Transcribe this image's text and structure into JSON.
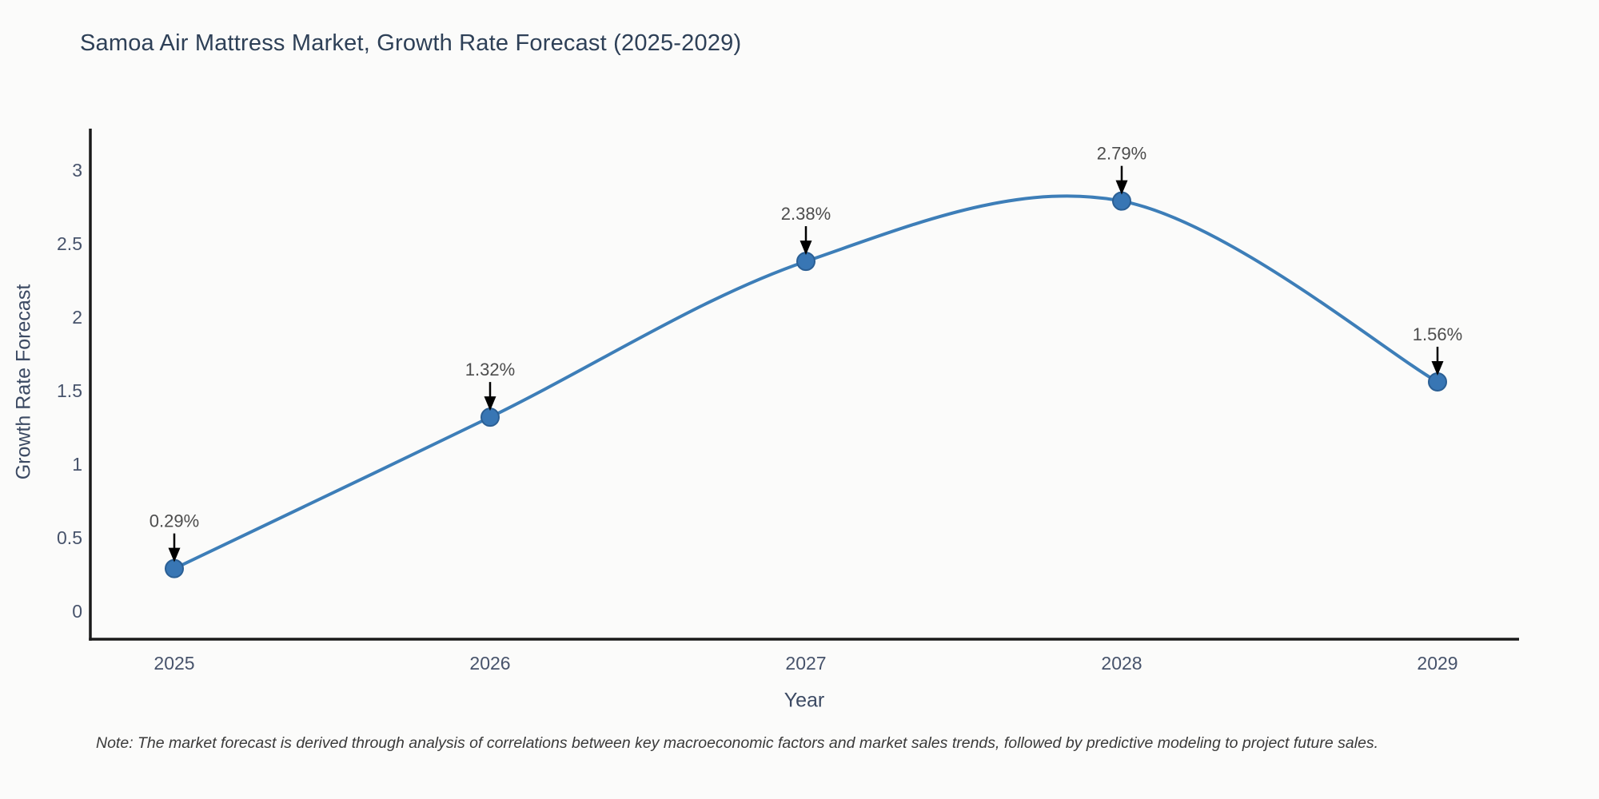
{
  "page": {
    "title": "Samoa Air Mattress Market, Growth Rate Forecast (2025-2029)",
    "note": "Note: The market forecast is derived through analysis of correlations between key macroeconomic factors and market sales trends, followed by predictive modeling to project future sales."
  },
  "chart_data": {
    "type": "line",
    "title": "Samoa Air Mattress Market, Growth Rate Forecast (2025-2029)",
    "xlabel": "Year",
    "ylabel": "Growth Rate Forecast",
    "categories": [
      "2025",
      "2026",
      "2027",
      "2028",
      "2029"
    ],
    "values": [
      0.29,
      1.32,
      2.38,
      2.79,
      1.56
    ],
    "point_labels": [
      "0.29%",
      "1.32%",
      "2.38%",
      "2.79%",
      "1.56%"
    ],
    "yticks": [
      0,
      0.5,
      1,
      1.5,
      2,
      2.5,
      3
    ],
    "ytick_labels": [
      "0",
      "0.5",
      "1",
      "1.5",
      "2",
      "2.5",
      "3"
    ],
    "ylim": [
      -0.2,
      3.3
    ],
    "grid": false,
    "legend": "none",
    "smooth_spline": true,
    "annotation_style": "black-arrow-pointing-down-to-point",
    "colors": {
      "line": "#3d7eb8",
      "marker_fill": "#3876b4",
      "marker_edge": "#2b5f94",
      "arrow": "#000000",
      "annotation_text": "#4d4d4d",
      "axis": "#1a1a1a",
      "tick_text": "#47536b",
      "title_text": "#2e4057",
      "note_text": "#3a3a3a"
    }
  }
}
